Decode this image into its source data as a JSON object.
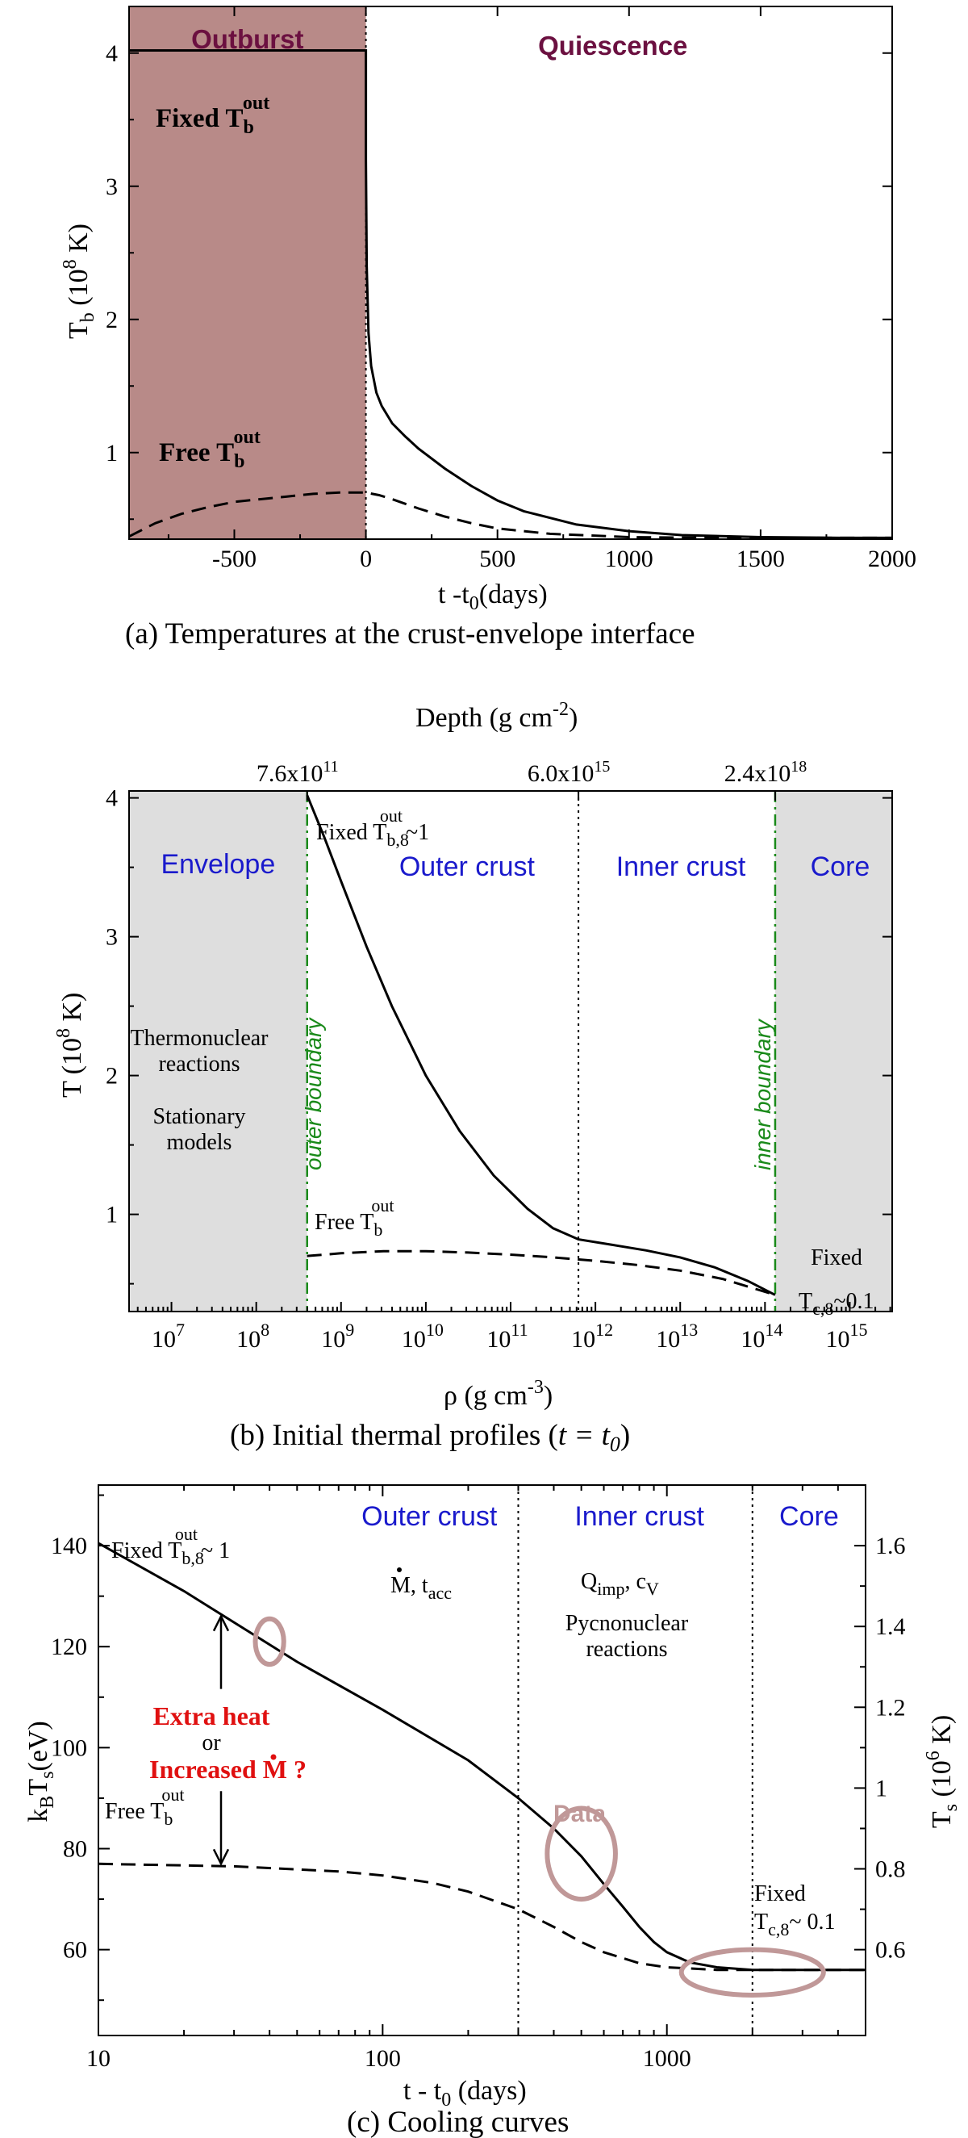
{
  "chart_data": [
    {
      "panel": "a",
      "type": "line",
      "caption": "(a) Temperatures at the crust-envelope interface",
      "xlabel": "t -t",
      "xlabel_sub": "0",
      "xlabel_suffix": "(days)",
      "ylabel": "T",
      "ylabel_sub": "b",
      "ylabel_units": " (10",
      "ylabel_sup": "8",
      "ylabel_end": " K)",
      "xlim": [
        -900,
        2000
      ],
      "ylim": [
        0.35,
        4.35
      ],
      "x_ticks": [
        -500,
        0,
        500,
        1000,
        1500,
        2000
      ],
      "y_ticks": [
        1,
        2,
        3,
        4
      ],
      "regions": [
        {
          "label": "Outburst",
          "from": -900,
          "to": 0,
          "color": "#b88a88"
        },
        {
          "label": "Quiescence",
          "from": 0,
          "to": 2000,
          "color": "#ffffff"
        }
      ],
      "series": [
        {
          "label": "Fixed T",
          "label_sub": "b",
          "label_sup": "out",
          "style": "solid",
          "x": [
            -900,
            -10,
            0,
            0,
            3,
            10,
            20,
            40,
            60,
            100,
            150,
            200,
            300,
            400,
            500,
            600,
            800,
            1000,
            1200,
            1500,
            1800,
            2000
          ],
          "y": [
            4.02,
            4.02,
            4.02,
            3.2,
            2.4,
            1.9,
            1.65,
            1.45,
            1.35,
            1.22,
            1.12,
            1.03,
            0.88,
            0.75,
            0.64,
            0.56,
            0.46,
            0.41,
            0.38,
            0.365,
            0.36,
            0.36
          ]
        },
        {
          "label": "Free T",
          "label_sub": "b",
          "label_sup": "out",
          "style": "dashed",
          "x": [
            -900,
            -800,
            -700,
            -600,
            -500,
            -400,
            -300,
            -200,
            -100,
            0,
            50,
            100,
            200,
            300,
            400,
            500,
            700,
            1000,
            1300,
            1600,
            2000
          ],
          "y": [
            0.37,
            0.47,
            0.54,
            0.59,
            0.63,
            0.65,
            0.67,
            0.69,
            0.7,
            0.7,
            0.68,
            0.65,
            0.58,
            0.52,
            0.47,
            0.43,
            0.39,
            0.365,
            0.36,
            0.36,
            0.36
          ]
        }
      ]
    },
    {
      "panel": "b",
      "type": "line",
      "caption_pre": "(b) Initial thermal profiles (",
      "caption_math": "t = t",
      "caption_sub": "0",
      "caption_post": ")",
      "xlabel": "ρ (g cm",
      "xlabel_sup": "-3",
      "xlabel_end": ")",
      "top_axis_label": "Depth (g cm",
      "top_axis_sup": "-2",
      "top_axis_end": ")",
      "ylabel": "T (10",
      "ylabel_sup": "8",
      "ylabel_end": " K)",
      "x_log": true,
      "xlim_log10": [
        6.5,
        15.5
      ],
      "ylim": [
        0.3,
        4.05
      ],
      "x_tick_exponents": [
        7,
        8,
        9,
        10,
        11,
        12,
        13,
        14,
        15
      ],
      "y_ticks": [
        1,
        2,
        3,
        4
      ],
      "top_ticks": [
        {
          "log10_rho": 8.6,
          "mantissa": "7.6x10",
          "exp": "11"
        },
        {
          "log10_rho": 11.8,
          "mantissa": "6.0x10",
          "exp": "15"
        },
        {
          "log10_rho": 14.12,
          "mantissa": "2.4x10",
          "exp": "18"
        }
      ],
      "regions": [
        {
          "label": "Envelope",
          "from_log10": 6.5,
          "to_log10": 8.6,
          "color": "#dedede"
        },
        {
          "label": "Outer crust",
          "from_log10": 8.6,
          "to_log10": 11.8
        },
        {
          "label": "Inner crust",
          "from_log10": 11.8,
          "to_log10": 14.12
        },
        {
          "label": "Core",
          "from_log10": 14.12,
          "to_log10": 15.5,
          "color": "#dedede"
        }
      ],
      "boundaries": [
        {
          "label": "outer boundary",
          "log10_rho": 8.6
        },
        {
          "label": "inner boundary",
          "log10_rho": 14.12
        }
      ],
      "crust_divider_log10": 11.8,
      "annotations": {
        "envelope_line1": "Thermonuclear",
        "envelope_line2": "reactions",
        "envelope_line3": "Stationary",
        "envelope_line4": "models",
        "core_line1": "Fixed",
        "core_T": "T",
        "core_sub": "c,8",
        "core_val": "~0.1"
      },
      "series": [
        {
          "label": "Fixed T",
          "label_sub": "b,8",
          "label_sup": "out",
          "label_val": "~1",
          "style": "solid",
          "x_log10": [
            8.6,
            8.8,
            9.0,
            9.3,
            9.6,
            10.0,
            10.4,
            10.8,
            11.2,
            11.5,
            11.8,
            12.2,
            12.6,
            13.0,
            13.4,
            13.8,
            14.12
          ],
          "y": [
            4.02,
            3.72,
            3.4,
            2.93,
            2.5,
            2.0,
            1.6,
            1.28,
            1.04,
            0.9,
            0.82,
            0.78,
            0.74,
            0.69,
            0.62,
            0.52,
            0.42
          ]
        },
        {
          "label": "Free T",
          "label_sub": "b",
          "label_sup": "out",
          "style": "dashed",
          "x_log10": [
            8.6,
            9.0,
            9.5,
            10.0,
            10.5,
            11.0,
            11.5,
            12.0,
            12.5,
            13.0,
            13.5,
            14.12
          ],
          "y": [
            0.7,
            0.72,
            0.735,
            0.735,
            0.725,
            0.71,
            0.69,
            0.665,
            0.635,
            0.595,
            0.535,
            0.42
          ]
        }
      ]
    },
    {
      "panel": "c",
      "type": "line",
      "caption": "(c) Cooling curves",
      "xlabel": "t - t",
      "xlabel_sub": "0",
      "xlabel_suffix": " (days)",
      "ylabel": "k",
      "ylabel_sub1": "B",
      "ylabel_mid": "T",
      "ylabel_sub2": "s",
      "ylabel_end": "(eV)",
      "y2label": "T",
      "y2label_sub": "s",
      "y2label_mid": " (10",
      "y2label_sup": "6",
      "y2label_end": " K)",
      "x_log": true,
      "xlim": [
        10,
        5000
      ],
      "ylim": [
        43,
        152
      ],
      "x_ticks": [
        10,
        100,
        1000
      ],
      "y_ticks": [
        60,
        80,
        100,
        120,
        140
      ],
      "y2_ticks": [
        0.6,
        0.8,
        1,
        1.2,
        1.4,
        1.6
      ],
      "y2_tick_labels": [
        "0.6",
        "0.8",
        "1",
        "1.2",
        "1.4",
        "1.6"
      ],
      "regions": [
        {
          "label": "Outer crust",
          "from": 10,
          "to": 300
        },
        {
          "label": "Inner crust",
          "from": 300,
          "to": 2000
        },
        {
          "label": "Core",
          "from": 2000,
          "to": 5000
        }
      ],
      "dividers": [
        300,
        2000
      ],
      "annotations": {
        "outer_M": "M",
        "outer_tacc": ", t",
        "outer_tacc_sub": "acc",
        "inner_Q": "Q",
        "inner_Q_sub": "imp",
        "inner_cv": ", c",
        "inner_cv_sub": "V",
        "inner_line2": "Pycnonuclear",
        "inner_line3": "reactions",
        "extra_heat": "Extra heat",
        "or": "or",
        "increased": "Increased M",
        "increased_q": " ?",
        "data_label": "Data",
        "core_line1": "Fixed",
        "core_T": "T",
        "core_sub": "c,8",
        "core_val": "~ 0.1"
      },
      "series": [
        {
          "label": "Fixed T",
          "label_sub": "b,8",
          "label_sup": "out",
          "label_val": "~ 1",
          "style": "solid",
          "x": [
            10,
            20,
            50,
            100,
            200,
            300,
            400,
            500,
            600,
            700,
            800,
            900,
            1000,
            1200,
            1500,
            2000,
            3000,
            5000
          ],
          "y": [
            140.5,
            131,
            117,
            107.5,
            97.5,
            90,
            84,
            78.5,
            73,
            68.5,
            64.5,
            61.5,
            59.5,
            57.5,
            56.5,
            56,
            56,
            56
          ]
        },
        {
          "label": "Free T",
          "label_sub": "b",
          "label_sup": "out",
          "style": "dashed",
          "x": [
            10,
            30,
            70,
            100,
            150,
            200,
            300,
            400,
            500,
            600,
            800,
            1000,
            1500,
            2000,
            5000
          ],
          "y": [
            77,
            76.5,
            75.5,
            74.7,
            73.2,
            71.5,
            68,
            64.5,
            61.5,
            59.5,
            57.3,
            56.5,
            56,
            56,
            56
          ]
        }
      ],
      "data_ellipses": [
        {
          "x": 40,
          "y": 121,
          "rx_dec": 0.05,
          "ry": 4.5
        },
        {
          "x": 500,
          "y": 79,
          "rx_dec": 0.12,
          "ry": 9
        },
        {
          "x": 2000,
          "y": 55.5,
          "rx_dec": 0.25,
          "ry": 4.5
        }
      ],
      "arrow": {
        "x": 27,
        "y_top": 126,
        "y_bottom": 77,
        "label_y": 103
      }
    }
  ]
}
